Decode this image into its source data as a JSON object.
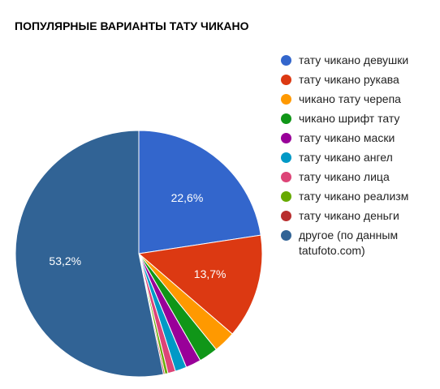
{
  "chart_data": {
    "type": "pie",
    "title": "ПОПУЛЯРНЫЕ ВАРИАНТЫ ТАТУ ЧИКАНО",
    "legend_position": "right",
    "slices": [
      {
        "label": "тату чикано девушки",
        "value": 22.6,
        "display": "22,6%",
        "color": "#3366cc"
      },
      {
        "label": "тату чикано рукава",
        "value": 13.7,
        "display": "13,7%",
        "color": "#dc3912"
      },
      {
        "label": "чикано тату черепа",
        "value": 2.9,
        "display": "",
        "color": "#ff9900"
      },
      {
        "label": "чикано шрифт тату",
        "value": 2.5,
        "display": "",
        "color": "#109618"
      },
      {
        "label": "тату чикано маски",
        "value": 2.0,
        "display": "",
        "color": "#990099"
      },
      {
        "label": "тату чикано ангел",
        "value": 1.5,
        "display": "",
        "color": "#0099c6"
      },
      {
        "label": "тату чикано лица",
        "value": 1.0,
        "display": "",
        "color": "#dd4477"
      },
      {
        "label": "тату чикано реализм",
        "value": 0.4,
        "display": "",
        "color": "#66aa00"
      },
      {
        "label": "тату чикано деньги",
        "value": 0.2,
        "display": "",
        "color": "#b82e2e"
      },
      {
        "label": "другое (по данным tatufoto.com)",
        "value": 53.2,
        "display": "53,2%",
        "color": "#316395"
      }
    ]
  }
}
